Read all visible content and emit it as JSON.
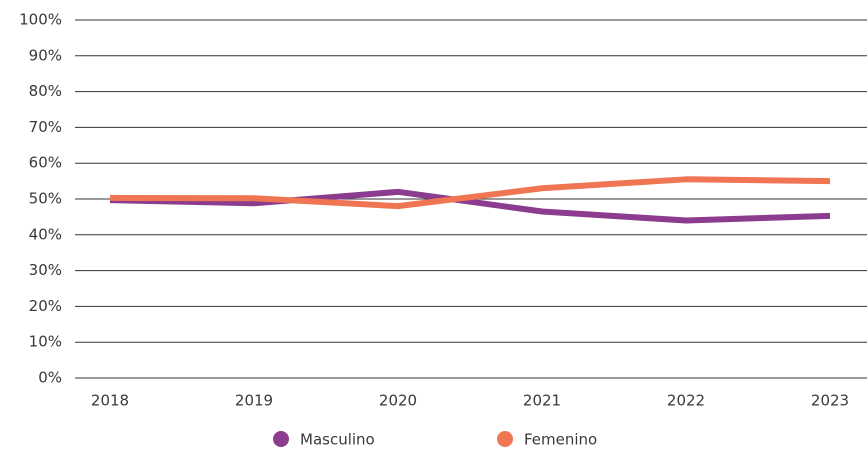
{
  "chart_data": {
    "type": "line",
    "categories": [
      "2018",
      "2019",
      "2020",
      "2021",
      "2022",
      "2023"
    ],
    "series": [
      {
        "name": "Masculino",
        "color": "#8b3c8e",
        "values": [
          49.7,
          48.8,
          52,
          46.5,
          44,
          45.3
        ]
      },
      {
        "name": "Femenino",
        "color": "#f07552",
        "values": [
          50.3,
          50.2,
          48,
          53,
          55.5,
          55
        ]
      }
    ],
    "ylim": [
      0,
      100
    ],
    "yticks": [
      {
        "value": 0,
        "label": "0%"
      },
      {
        "value": 10,
        "label": "10%"
      },
      {
        "value": 20,
        "label": "20%"
      },
      {
        "value": 30,
        "label": "30%"
      },
      {
        "value": 40,
        "label": "40%"
      },
      {
        "value": 50,
        "label": "50%"
      },
      {
        "value": 60,
        "label": "60%"
      },
      {
        "value": 70,
        "label": "70%"
      },
      {
        "value": 80,
        "label": "80%"
      },
      {
        "value": 90,
        "label": "90%"
      },
      {
        "value": 100,
        "label": "100%"
      }
    ],
    "grid": true,
    "legend": "bottom"
  }
}
